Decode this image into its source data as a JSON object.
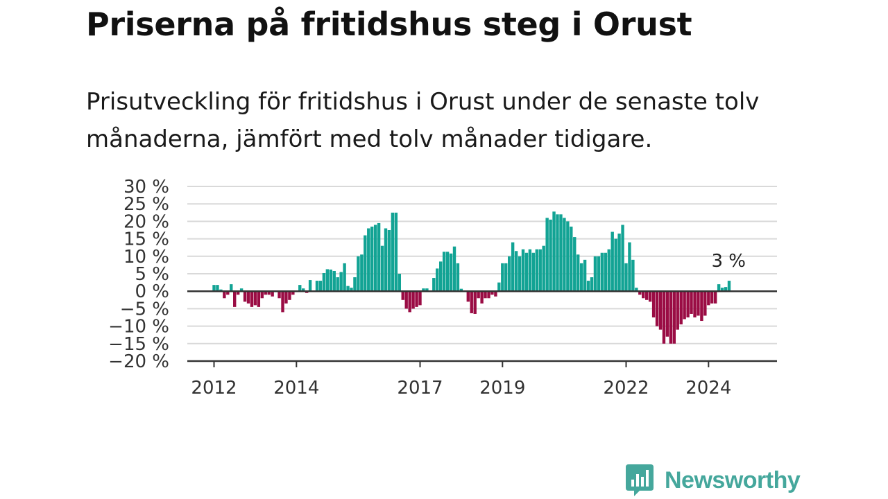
{
  "title": "Priserna på fritidshus steg i Orust",
  "subtitle": "Prisutveckling för fritidshus i Orust under de senaste tolv månaderna, jämfört med tolv månader tidigare.",
  "logo": {
    "text": "Newsworthy",
    "icon": "bar-chart-bubble-icon",
    "color": "#45a79c"
  },
  "colors": {
    "positive": "#12a394",
    "negative": "#9a0c44",
    "grid": "#d9d9d9",
    "zero_line": "#333333"
  },
  "chart_data": {
    "type": "bar",
    "ylim": [
      -20,
      30
    ],
    "yticks": [
      30,
      25,
      20,
      15,
      10,
      5,
      0,
      -5,
      -10,
      -15,
      -20
    ],
    "ytick_labels": [
      "30 %",
      "25 %",
      "20 %",
      "15 %",
      "10 %",
      "5 %",
      "0 %",
      "−5 %",
      "−10 %",
      "−15 %",
      "−20 %"
    ],
    "xtick_labels": [
      {
        "label": "2012",
        "month_index": 0
      },
      {
        "label": "2014",
        "month_index": 24
      },
      {
        "label": "2017",
        "month_index": 60
      },
      {
        "label": "2019",
        "month_index": 84
      },
      {
        "label": "2022",
        "month_index": 120
      },
      {
        "label": "2024",
        "month_index": 144
      }
    ],
    "first_month": "2012-01",
    "frequency": "monthly",
    "last_value_label": "3 %",
    "values": [
      1.8,
      1.8,
      0.5,
      -2.0,
      -1.0,
      2.0,
      -4.5,
      -1.0,
      0.8,
      -3.0,
      -3.5,
      -4.5,
      -4.0,
      -4.5,
      -2.0,
      -1.0,
      -1.0,
      -1.5,
      0.0,
      -2.0,
      -6.0,
      -3.5,
      -2.5,
      -1.0,
      0.0,
      1.8,
      0.8,
      -0.5,
      3.2,
      0.0,
      3.0,
      3.0,
      5.2,
      6.3,
      6.2,
      5.8,
      4.0,
      5.5,
      8.0,
      1.5,
      1.0,
      4.0,
      10.0,
      10.5,
      16.0,
      18.0,
      18.5,
      19.0,
      19.5,
      13.0,
      18.0,
      17.5,
      22.5,
      22.5,
      5.0,
      -2.5,
      -5.0,
      -6.0,
      -5.0,
      -4.5,
      -4.0,
      0.8,
      0.8,
      0.0,
      3.8,
      6.5,
      8.5,
      11.3,
      11.3,
      10.8,
      12.8,
      8.0,
      0.7,
      0.0,
      -3.0,
      -6.3,
      -6.5,
      -2.0,
      -3.5,
      -2.0,
      -2.0,
      -1.0,
      -1.5,
      2.5,
      8.0,
      8.0,
      10.0,
      14.0,
      11.5,
      10.0,
      12.0,
      11.0,
      12.0,
      11.0,
      12.0,
      12.0,
      13.0,
      21.0,
      20.5,
      22.8,
      22.0,
      22.0,
      21.0,
      20.0,
      18.5,
      15.5,
      10.5,
      8.0,
      9.0,
      3.0,
      4.0,
      10.0,
      10.0,
      11.0,
      11.0,
      12.0,
      17.0,
      15.0,
      16.5,
      19.0,
      8.0,
      14.0,
      9.0,
      1.0,
      -1.0,
      -2.0,
      -2.5,
      -3.0,
      -7.5,
      -10.0,
      -11.0,
      -15.0,
      -13.0,
      -15.0,
      -15.0,
      -11.0,
      -9.5,
      -8.0,
      -7.5,
      -6.5,
      -7.5,
      -7.0,
      -8.5,
      -7.0,
      -4.0,
      -3.5,
      -3.5,
      2.0,
      1.0,
      1.2,
      3.0
    ]
  }
}
